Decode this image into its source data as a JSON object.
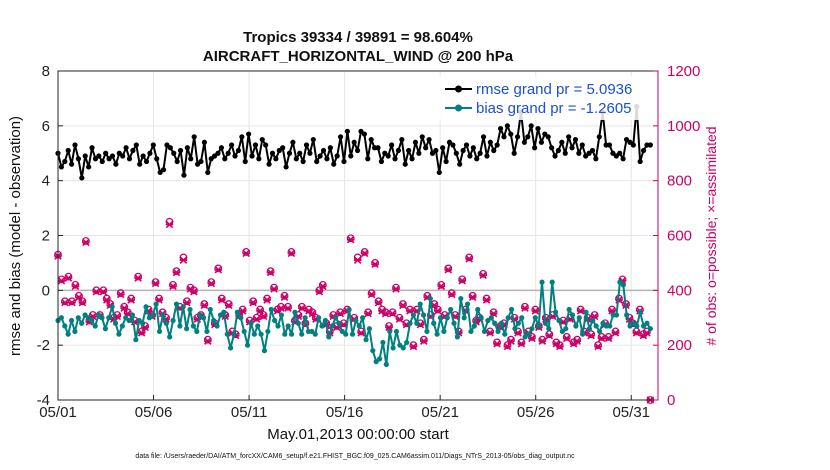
{
  "chart_data": {
    "type": "line",
    "title": "Tropics 39334 / 39891 = 98.604%",
    "subtitle": "AIRCRAFT_HORIZONTAL_WIND @ 200 hPa",
    "xlabel": "May.01,2013 00:00:00 start",
    "ylabel": "rmse and bias (model - observation)",
    "ylabel_right": "# of obs: o=possible; ×=assimilated",
    "footnote": "data file: /Users/raeder/DAI/ATM_forcXX/CAM6_setup/f.e21.FHIST_BGC.f09_025.CAM6assim.011/Diags_NTrS_2013-05/obs_diag_output.nc",
    "x_ticks": [
      "05/01",
      "05/06",
      "05/11",
      "05/16",
      "05/21",
      "05/26",
      "05/31"
    ],
    "xlim_days": [
      0,
      31.4
    ],
    "ylim": [
      -4,
      8
    ],
    "y_ticks": [
      -4,
      -2,
      0,
      2,
      4,
      6,
      8
    ],
    "ylim_right": [
      0,
      1200
    ],
    "y_ticks_right": [
      0,
      200,
      400,
      600,
      800,
      1000,
      1200
    ],
    "grid": true,
    "legend_position": "top-right",
    "colors": {
      "rmse": "#000000",
      "bias": "#008080",
      "obs": "#cc0066",
      "zero_line": "#b3b3b3"
    },
    "series": [
      {
        "name": "rmse grand pr = 5.0936",
        "values": [
          5.0,
          4.5,
          4.7,
          5.1,
          4.6,
          5.3,
          4.8,
          4.1,
          4.9,
          4.5,
          5.2,
          4.8,
          4.9,
          4.7,
          5.0,
          4.8,
          4.9,
          4.6,
          5.0,
          4.9,
          5.2,
          4.8,
          5.1,
          5.3,
          4.6,
          4.9,
          4.7,
          5.0,
          5.3,
          4.8,
          4.3,
          4.4,
          5.3,
          5.2,
          5.0,
          4.7,
          5.1,
          4.2,
          5.2,
          4.8,
          5.6,
          4.6,
          4.7,
          5.4,
          4.3,
          4.8,
          4.9,
          5.0,
          5.2,
          4.8,
          5.0,
          5.3,
          4.9,
          5.1,
          5.6,
          4.7,
          5.7,
          4.9,
          5.3,
          4.8,
          5.5,
          5.3,
          4.6,
          5.0,
          4.8,
          5.1,
          5.2,
          4.5,
          5.0,
          5.4,
          4.8,
          5.0,
          4.7,
          5.3,
          5.0,
          5.5,
          4.7,
          4.9,
          5.1,
          4.8,
          5.2,
          4.6,
          4.9,
          5.6,
          4.7,
          5.8,
          4.9,
          5.4,
          5.1,
          5.8,
          5.7,
          4.8,
          5.5,
          5.2,
          5.2,
          4.7,
          5.0,
          4.9,
          5.3,
          4.8,
          5.1,
          5.5,
          4.6,
          5.1,
          4.8,
          5.4,
          5.0,
          5.6,
          5.2,
          5.5,
          5.0,
          5.1,
          4.3,
          5.2,
          4.7,
          5.4,
          5.3,
          5.0,
          4.6,
          5.1,
          5.3,
          4.9,
          5.2,
          4.8,
          5.0,
          5.6,
          4.9,
          5.4,
          5.1,
          5.3,
          5.9,
          5.6,
          6.0,
          5.7,
          5.0,
          5.6,
          6.5,
          5.4,
          5.6,
          6.0,
          5.2,
          5.9,
          5.4,
          5.7,
          5.6,
          5.2,
          4.9,
          5.1,
          5.4,
          5.0,
          5.6,
          5.2,
          5.5,
          5.0,
          5.3,
          4.9,
          5.0,
          5.1,
          4.8,
          5.6,
          6.5,
          5.3,
          5.3,
          5.0,
          4.9,
          5.0,
          4.8,
          5.5,
          5.4,
          5.3,
          6.7,
          4.7,
          5.1,
          5.3,
          5.3
        ]
      },
      {
        "name": "bias grand pr = -1.2605",
        "values": [
          -1.1,
          -1.0,
          -1.3,
          -1.6,
          -1.1,
          -1.5,
          -1.0,
          -1.2,
          -0.9,
          -1.0,
          -1.1,
          -1.3,
          -0.9,
          -1.0,
          -1.4,
          -1.0,
          -0.6,
          -1.2,
          -1.6,
          -1.3,
          -1.0,
          -1.1,
          -0.9,
          -1.8,
          -1.1,
          -1.2,
          -0.6,
          -1.0,
          -0.9,
          -0.5,
          -1.5,
          -0.9,
          -1.2,
          -1.7,
          -1.1,
          -0.5,
          -1.3,
          -0.6,
          -1.4,
          -0.7,
          -1.3,
          -1.5,
          -0.9,
          -1.0,
          -1.5,
          -0.7,
          -1.1,
          -1.3,
          -0.9,
          -0.8,
          -1.6,
          -2.1,
          -1.6,
          -0.8,
          -1.0,
          -1.5,
          -2.0,
          -1.2,
          -1.6,
          -1.3,
          -1.6,
          -2.2,
          -1.5,
          -0.7,
          -1.1,
          -1.3,
          -0.9,
          -1.6,
          -1.3,
          -1.6,
          -0.8,
          -1.2,
          -1.6,
          -1.0,
          -1.5,
          -1.5,
          -1.6,
          -1.0,
          -1.3,
          -1.1,
          -1.7,
          -1.3,
          -1.0,
          -1.2,
          -1.5,
          -1.6,
          -0.7,
          -1.6,
          -1.1,
          -1.3,
          -1.0,
          -1.8,
          -1.4,
          -2.2,
          -2.6,
          -2.5,
          -1.9,
          -2.7,
          -1.5,
          -2.1,
          -1.5,
          -2.0,
          -2.1,
          -1.9,
          -1.2,
          -0.9,
          -1.2,
          -0.5,
          -0.9,
          -1.5,
          -0.3,
          -1.2,
          -1.6,
          -1.0,
          -1.5,
          -1.0,
          -0.7,
          -1.2,
          -1.7,
          -0.3,
          -1.0,
          -0.5,
          -1.5,
          -1.3,
          -0.7,
          -1.0,
          -1.5,
          -1.1,
          -1.0,
          -1.2,
          -1.5,
          -1.2,
          -1.6,
          -1.0,
          -0.7,
          -1.4,
          -1.2,
          -1.0,
          -1.7,
          -1.6,
          -1.4,
          -1.0,
          -1.3,
          0.3,
          -1.2,
          -1.4,
          0.3,
          -0.8,
          -1.1,
          -1.5,
          -1.4,
          -0.7,
          -0.9,
          -1.3,
          -1.0,
          -1.6,
          -0.8,
          -1.4,
          -1.1,
          -1.3,
          -1.5,
          -1.2,
          -1.3,
          -1.3,
          -0.9,
          -0.9,
          0.3,
          0.2,
          -0.9,
          -1.3,
          -1.2,
          -1.3,
          -0.8,
          -1.3,
          -1.2,
          -1.4
        ]
      },
      {
        "name": "# of obs possible",
        "axis": "right",
        "values": [
          530,
          440,
          360,
          450,
          360,
          420,
          380,
          360,
          580,
          290,
          310,
          400,
          310,
          400,
          370,
          350,
          300,
          310,
          390,
          340,
          320,
          370,
          290,
          450,
          250,
          270,
          330,
          310,
          430,
          370,
          320,
          300,
          650,
          420,
          470,
          340,
          520,
          360,
          410,
          400,
          300,
          310,
          350,
          220,
          430,
          280,
          480,
          370,
          310,
          350,
          250,
          240,
          310,
          330,
          540,
          290,
          360,
          300,
          330,
          310,
          370,
          470,
          410,
          330,
          340,
          380,
          340,
          540,
          290,
          310,
          340,
          280,
          330,
          320,
          300,
          400,
          420,
          280,
          250,
          310,
          270,
          320,
          280,
          330,
          590,
          300,
          520,
          250,
          540,
          320,
          390,
          500,
          360,
          330,
          320,
          270,
          320,
          410,
          300,
          350,
          280,
          330,
          200,
          330,
          280,
          220,
          380,
          310,
          350,
          330,
          420,
          310,
          480,
          390,
          310,
          250,
          440,
          330,
          520,
          380,
          290,
          300,
          460,
          370,
          250,
          320,
          210,
          270,
          280,
          200,
          220,
          300,
          250,
          210,
          340,
          250,
          230,
          330,
          270,
          220,
          300,
          240,
          310,
          210,
          200,
          290,
          230,
          300,
          210,
          220,
          330,
          250,
          300,
          240,
          310,
          200,
          230,
          280,
          230,
          330,
          250,
          370,
          440,
          350,
          300,
          280,
          250,
          330,
          240,
          250,
          0
        ]
      },
      {
        "name": "# of obs assimilated",
        "axis": "right",
        "values": [
          525,
          435,
          355,
          445,
          355,
          415,
          375,
          355,
          575,
          285,
          305,
          395,
          305,
          395,
          365,
          345,
          295,
          305,
          385,
          335,
          315,
          365,
          285,
          445,
          245,
          265,
          325,
          305,
          425,
          365,
          315,
          295,
          640,
          415,
          465,
          335,
          510,
          355,
          405,
          395,
          295,
          305,
          345,
          215,
          425,
          275,
          475,
          365,
          305,
          345,
          245,
          235,
          305,
          325,
          535,
          285,
          355,
          295,
          325,
          305,
          365,
          465,
          405,
          325,
          335,
          375,
          335,
          535,
          285,
          305,
          335,
          275,
          325,
          315,
          295,
          395,
          415,
          275,
          245,
          305,
          265,
          315,
          275,
          325,
          585,
          295,
          510,
          245,
          535,
          315,
          385,
          495,
          355,
          325,
          315,
          265,
          315,
          405,
          295,
          345,
          275,
          325,
          195,
          325,
          275,
          215,
          375,
          305,
          345,
          325,
          415,
          305,
          475,
          385,
          305,
          245,
          435,
          325,
          515,
          375,
          285,
          295,
          455,
          365,
          245,
          315,
          205,
          265,
          275,
          195,
          215,
          295,
          245,
          205,
          335,
          245,
          225,
          325,
          265,
          215,
          295,
          235,
          305,
          205,
          195,
          285,
          225,
          295,
          205,
          215,
          325,
          245,
          295,
          235,
          305,
          195,
          225,
          275,
          225,
          325,
          245,
          365,
          435,
          345,
          295,
          275,
          245,
          325,
          235,
          245,
          0
        ]
      }
    ]
  }
}
